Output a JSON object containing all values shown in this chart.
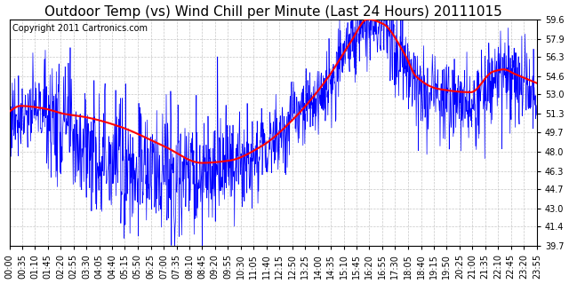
{
  "title": "Outdoor Temp (vs) Wind Chill per Minute (Last 24 Hours) 20111015",
  "copyright_text": "Copyright 2011 Cartronics.com",
  "y_ticks": [
    39.7,
    41.4,
    43.0,
    44.7,
    46.3,
    48.0,
    49.7,
    51.3,
    53.0,
    54.6,
    56.3,
    57.9,
    59.6
  ],
  "y_min": 39.7,
  "y_max": 59.6,
  "x_tick_labels": [
    "00:00",
    "00:35",
    "01:10",
    "01:45",
    "02:20",
    "02:55",
    "03:30",
    "04:05",
    "04:40",
    "05:15",
    "05:50",
    "06:25",
    "07:00",
    "07:35",
    "08:10",
    "08:45",
    "09:20",
    "09:55",
    "10:30",
    "11:05",
    "11:40",
    "12:15",
    "12:50",
    "13:25",
    "14:00",
    "14:35",
    "15:10",
    "15:45",
    "16:20",
    "16:55",
    "17:30",
    "18:05",
    "18:40",
    "19:15",
    "19:50",
    "20:25",
    "21:00",
    "21:35",
    "22:10",
    "22:45",
    "23:20",
    "23:55"
  ],
  "background_color": "#ffffff",
  "plot_bg_color": "#ffffff",
  "grid_color": "#c8c8c8",
  "blue_line_color": "#0000ff",
  "red_line_color": "#ff0000",
  "title_fontsize": 11,
  "copyright_fontsize": 7,
  "tick_fontsize": 7,
  "red_keypoints_t": [
    0,
    0.5,
    1.5,
    2.5,
    3.5,
    5.0,
    7.0,
    8.75,
    10.0,
    11.5,
    13.0,
    14.5,
    15.5,
    16.3,
    17.0,
    18.0,
    18.5,
    19.5,
    21.0,
    22.0,
    22.5,
    23.0,
    24.0
  ],
  "red_keypoints_v": [
    51.5,
    52.0,
    51.8,
    51.3,
    51.0,
    50.2,
    48.5,
    47.0,
    47.2,
    48.5,
    51.0,
    54.5,
    57.5,
    59.6,
    59.2,
    56.5,
    54.6,
    53.5,
    53.2,
    55.0,
    55.2,
    54.8,
    54.0
  ]
}
